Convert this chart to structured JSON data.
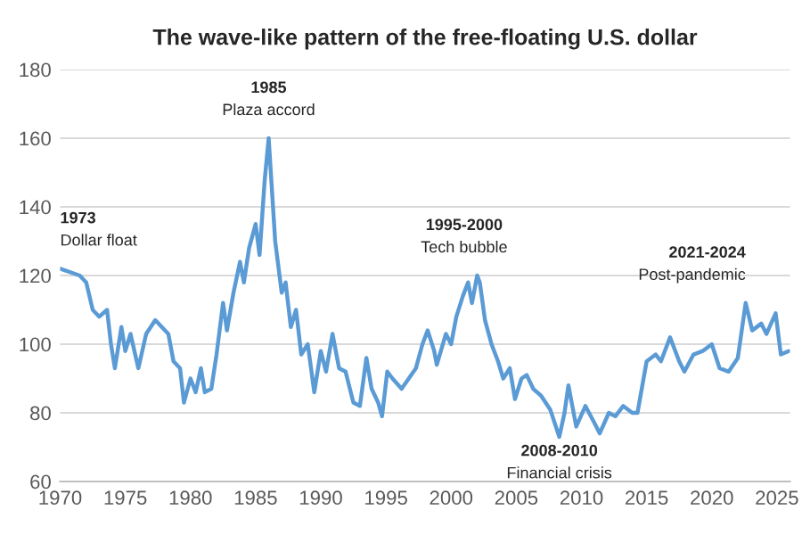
{
  "chart_data": {
    "type": "line",
    "title": "The wave-like pattern of the free-floating U.S. dollar",
    "x": [
      1970.0,
      1971.5,
      1972.0,
      1972.5,
      1973.0,
      1973.6,
      1973.9,
      1974.2,
      1974.7,
      1975.0,
      1975.4,
      1976.0,
      1976.6,
      1977.3,
      1978.3,
      1978.7,
      1979.2,
      1979.5,
      1980.0,
      1980.4,
      1980.8,
      1981.1,
      1981.6,
      1982.0,
      1982.5,
      1982.8,
      1983.3,
      1983.8,
      1984.1,
      1984.5,
      1985.0,
      1985.3,
      1985.7,
      1986.0,
      1986.2,
      1986.5,
      1987.0,
      1987.3,
      1987.7,
      1988.1,
      1988.5,
      1989.0,
      1989.5,
      1990.0,
      1990.4,
      1990.9,
      1991.4,
      1991.9,
      1992.5,
      1993.0,
      1993.5,
      1993.9,
      1994.4,
      1994.7,
      1995.1,
      1995.5,
      1996.2,
      1997.3,
      1997.8,
      1998.2,
      1998.7,
      1998.9,
      1999.6,
      2000.0,
      2000.4,
      2000.9,
      2001.3,
      2001.6,
      2002.0,
      2002.2,
      2002.6,
      2003.1,
      2003.6,
      2004.0,
      2004.5,
      2004.9,
      2005.4,
      2005.8,
      2006.3,
      2006.9,
      2007.6,
      2008.3,
      2008.7,
      2009.0,
      2009.6,
      2010.3,
      2011.0,
      2011.4,
      2012.1,
      2012.6,
      2013.2,
      2013.9,
      2014.3,
      2015.0,
      2015.7,
      2016.1,
      2016.8,
      2017.5,
      2017.9,
      2018.6,
      2019.3,
      2020.0,
      2020.6,
      2021.3,
      2022.0,
      2022.6,
      2023.1,
      2023.8,
      2024.2,
      2024.9,
      2025.3,
      2025.9
    ],
    "series": [
      {
        "color": "#5b9bd5",
        "values": [
          122,
          120,
          118,
          110,
          108,
          110,
          100,
          93,
          105,
          98,
          103,
          93,
          103,
          107,
          103,
          95,
          93,
          83,
          90,
          86,
          93,
          86,
          87,
          97,
          112,
          104,
          115,
          124,
          118,
          128,
          135,
          126,
          148,
          160,
          148,
          130,
          115,
          118,
          105,
          110,
          97,
          100,
          86,
          98,
          92,
          103,
          93,
          92,
          83,
          82,
          96,
          87,
          83,
          79,
          92,
          90,
          87,
          93,
          100,
          104,
          98,
          94,
          103,
          100,
          108,
          114,
          118,
          112,
          120,
          118,
          107,
          100,
          95,
          90,
          93,
          84,
          90,
          91,
          87,
          85,
          81,
          73,
          80,
          88,
          76,
          82,
          77,
          74,
          80,
          79,
          82,
          80,
          80,
          95,
          97,
          95,
          102,
          95,
          92,
          97,
          98,
          100,
          93,
          92,
          96,
          112,
          104,
          106,
          103,
          109,
          97,
          98
        ]
      }
    ],
    "xlim": [
      1970,
      2026
    ],
    "xticks": [
      1970,
      1975,
      1980,
      1985,
      1990,
      1995,
      2000,
      2005,
      2010,
      2015,
      2020,
      2025
    ],
    "ylim": [
      60,
      180
    ],
    "yticks": [
      60,
      80,
      100,
      120,
      140,
      160,
      180
    ],
    "grid": "y",
    "annotations": [
      {
        "text": "1973\nDollar float",
        "x": 1970.0,
        "y": 122
      },
      {
        "text": "1985\nPlaza accord",
        "x": 1986,
        "y": 160
      },
      {
        "text": "1995-2000\nTech bubble",
        "x": 2001,
        "y": 120
      },
      {
        "text": "2008-2010\nFinancial crisis",
        "x": 2008.3,
        "y": 73
      },
      {
        "text": "2021-2024\nPost-pandemic",
        "x": 2022.6,
        "y": 112
      }
    ]
  }
}
